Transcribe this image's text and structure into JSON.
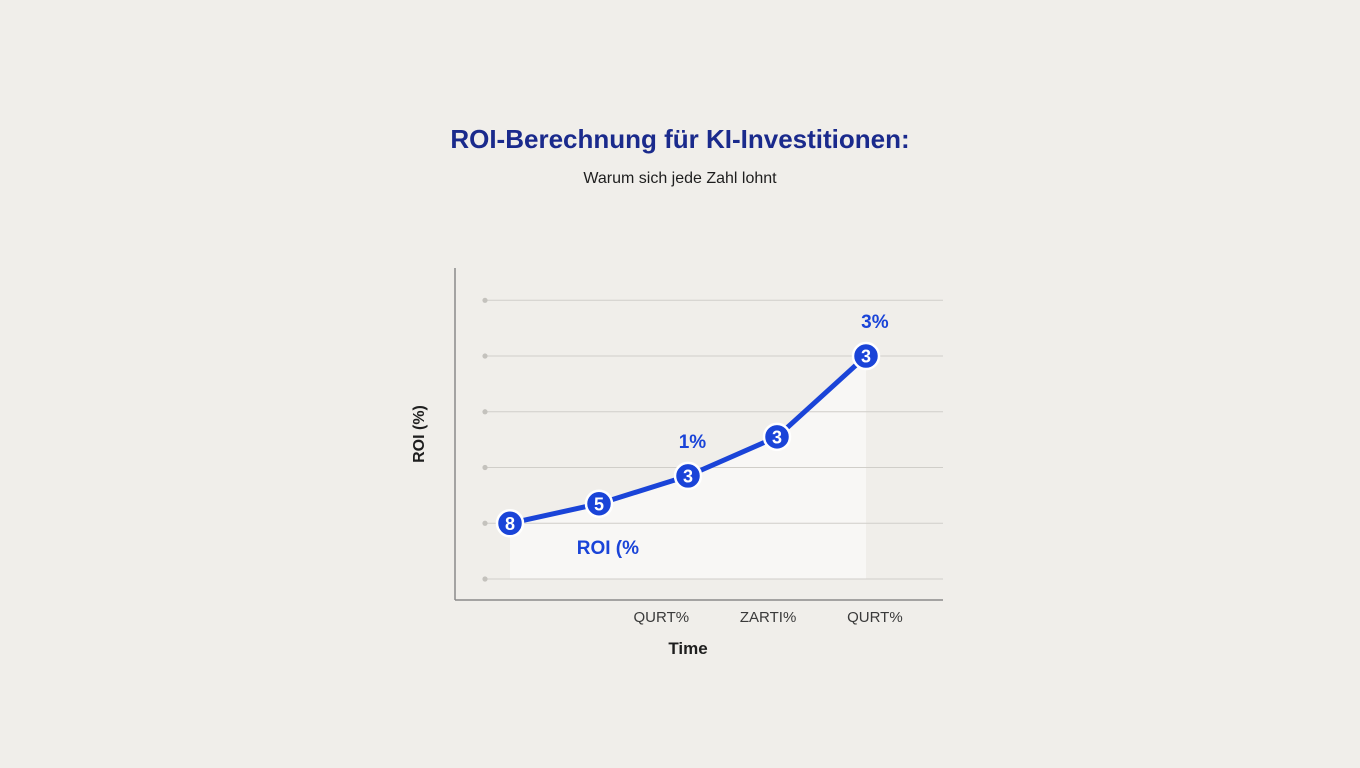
{
  "colors": {
    "accent": "#1a44d8",
    "title": "#1a2a8c",
    "gridline": "#d0cec9",
    "axis": "#8a8a8a",
    "area": "#f8f7f5"
  },
  "chart_data": {
    "type": "line",
    "title": "ROI-Berechnung für KI-Investitionen:",
    "subtitle": "Warum sich jede Zahl lohnt",
    "xlabel": "Time",
    "ylabel": "ROI (%)",
    "x": [
      0,
      1,
      2,
      3,
      4
    ],
    "xlim": [
      0,
      4.5
    ],
    "ylim": [
      0,
      5.4
    ],
    "grid": true,
    "gridlines": [
      0,
      1,
      2,
      3,
      4,
      5
    ],
    "x_tick_labels": [
      {
        "x": 1.7,
        "label": "QURT%"
      },
      {
        "x": 2.9,
        "label": "ZARTI%"
      },
      {
        "x": 4.1,
        "label": "QURT%"
      }
    ],
    "series": [
      {
        "name": "ROI",
        "values": [
          1.0,
          1.35,
          1.85,
          2.55,
          4.0
        ],
        "marker_labels": [
          "8",
          "5",
          "3",
          "3",
          "3"
        ]
      }
    ],
    "annotations": [
      {
        "text": "ROI (%",
        "x": 1.1,
        "y": 0.45
      },
      {
        "text": "1%",
        "x": 2.05,
        "y": 2.35
      },
      {
        "text": "3%",
        "x": 4.1,
        "y": 4.5
      }
    ]
  }
}
